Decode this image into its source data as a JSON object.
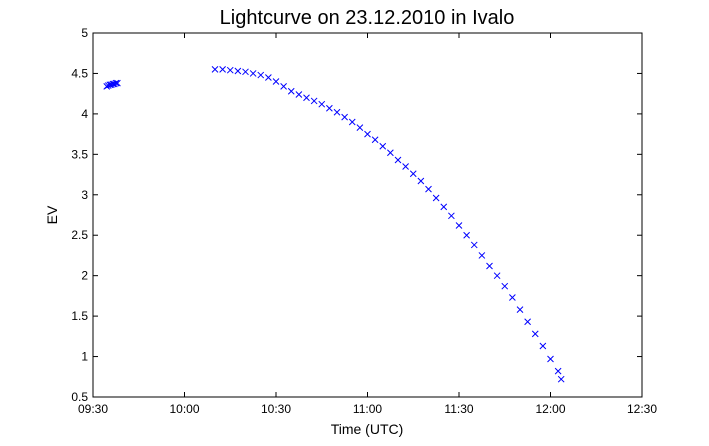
{
  "chart_data": {
    "type": "scatter",
    "title": "Lightcurve on 23.12.2010 in Ivalo",
    "xlabel": "Time (UTC)",
    "ylabel": "EV",
    "marker": "x",
    "xlim": [
      570,
      750
    ],
    "xticks": [
      {
        "value": 570,
        "label": "09:30"
      },
      {
        "value": 600,
        "label": "10:00"
      },
      {
        "value": 630,
        "label": "10:30"
      },
      {
        "value": 660,
        "label": "11:00"
      },
      {
        "value": 690,
        "label": "11:30"
      },
      {
        "value": 720,
        "label": "12:00"
      },
      {
        "value": 750,
        "label": "12:30"
      }
    ],
    "ylim": [
      0.5,
      5
    ],
    "yticks": [
      0.5,
      1,
      1.5,
      2,
      2.5,
      3,
      3.5,
      4,
      4.5,
      5
    ],
    "grid": false,
    "series": [
      {
        "color": "#0000ff",
        "x": [
          574.5,
          575,
          575.5,
          576,
          576.5,
          577,
          577.5,
          578,
          610,
          612.5,
          615,
          617.5,
          620,
          622.5,
          625,
          627.5,
          630,
          632.5,
          635,
          637.5,
          640,
          642.5,
          645,
          647.5,
          650,
          652.5,
          655,
          657.5,
          660,
          662.5,
          665,
          667.5,
          670,
          672.5,
          675,
          677.5,
          680,
          682.5,
          685,
          687.5,
          690,
          692.5,
          695,
          697.5,
          700,
          702.5,
          705,
          707.5,
          710,
          712.5,
          715,
          717.5,
          720,
          722.5,
          723.5
        ],
        "values": [
          4.34,
          4.35,
          4.36,
          4.36,
          4.37,
          4.37,
          4.38,
          4.38,
          4.55,
          4.55,
          4.54,
          4.53,
          4.52,
          4.5,
          4.48,
          4.45,
          4.4,
          4.34,
          4.28,
          4.24,
          4.2,
          4.16,
          4.12,
          4.07,
          4.02,
          3.96,
          3.9,
          3.83,
          3.75,
          3.68,
          3.6,
          3.52,
          3.43,
          3.35,
          3.26,
          3.17,
          3.07,
          2.96,
          2.85,
          2.74,
          2.62,
          2.5,
          2.38,
          2.25,
          2.12,
          2.0,
          1.87,
          1.73,
          1.58,
          1.43,
          1.28,
          1.13,
          0.97,
          0.82,
          0.72
        ]
      }
    ]
  }
}
